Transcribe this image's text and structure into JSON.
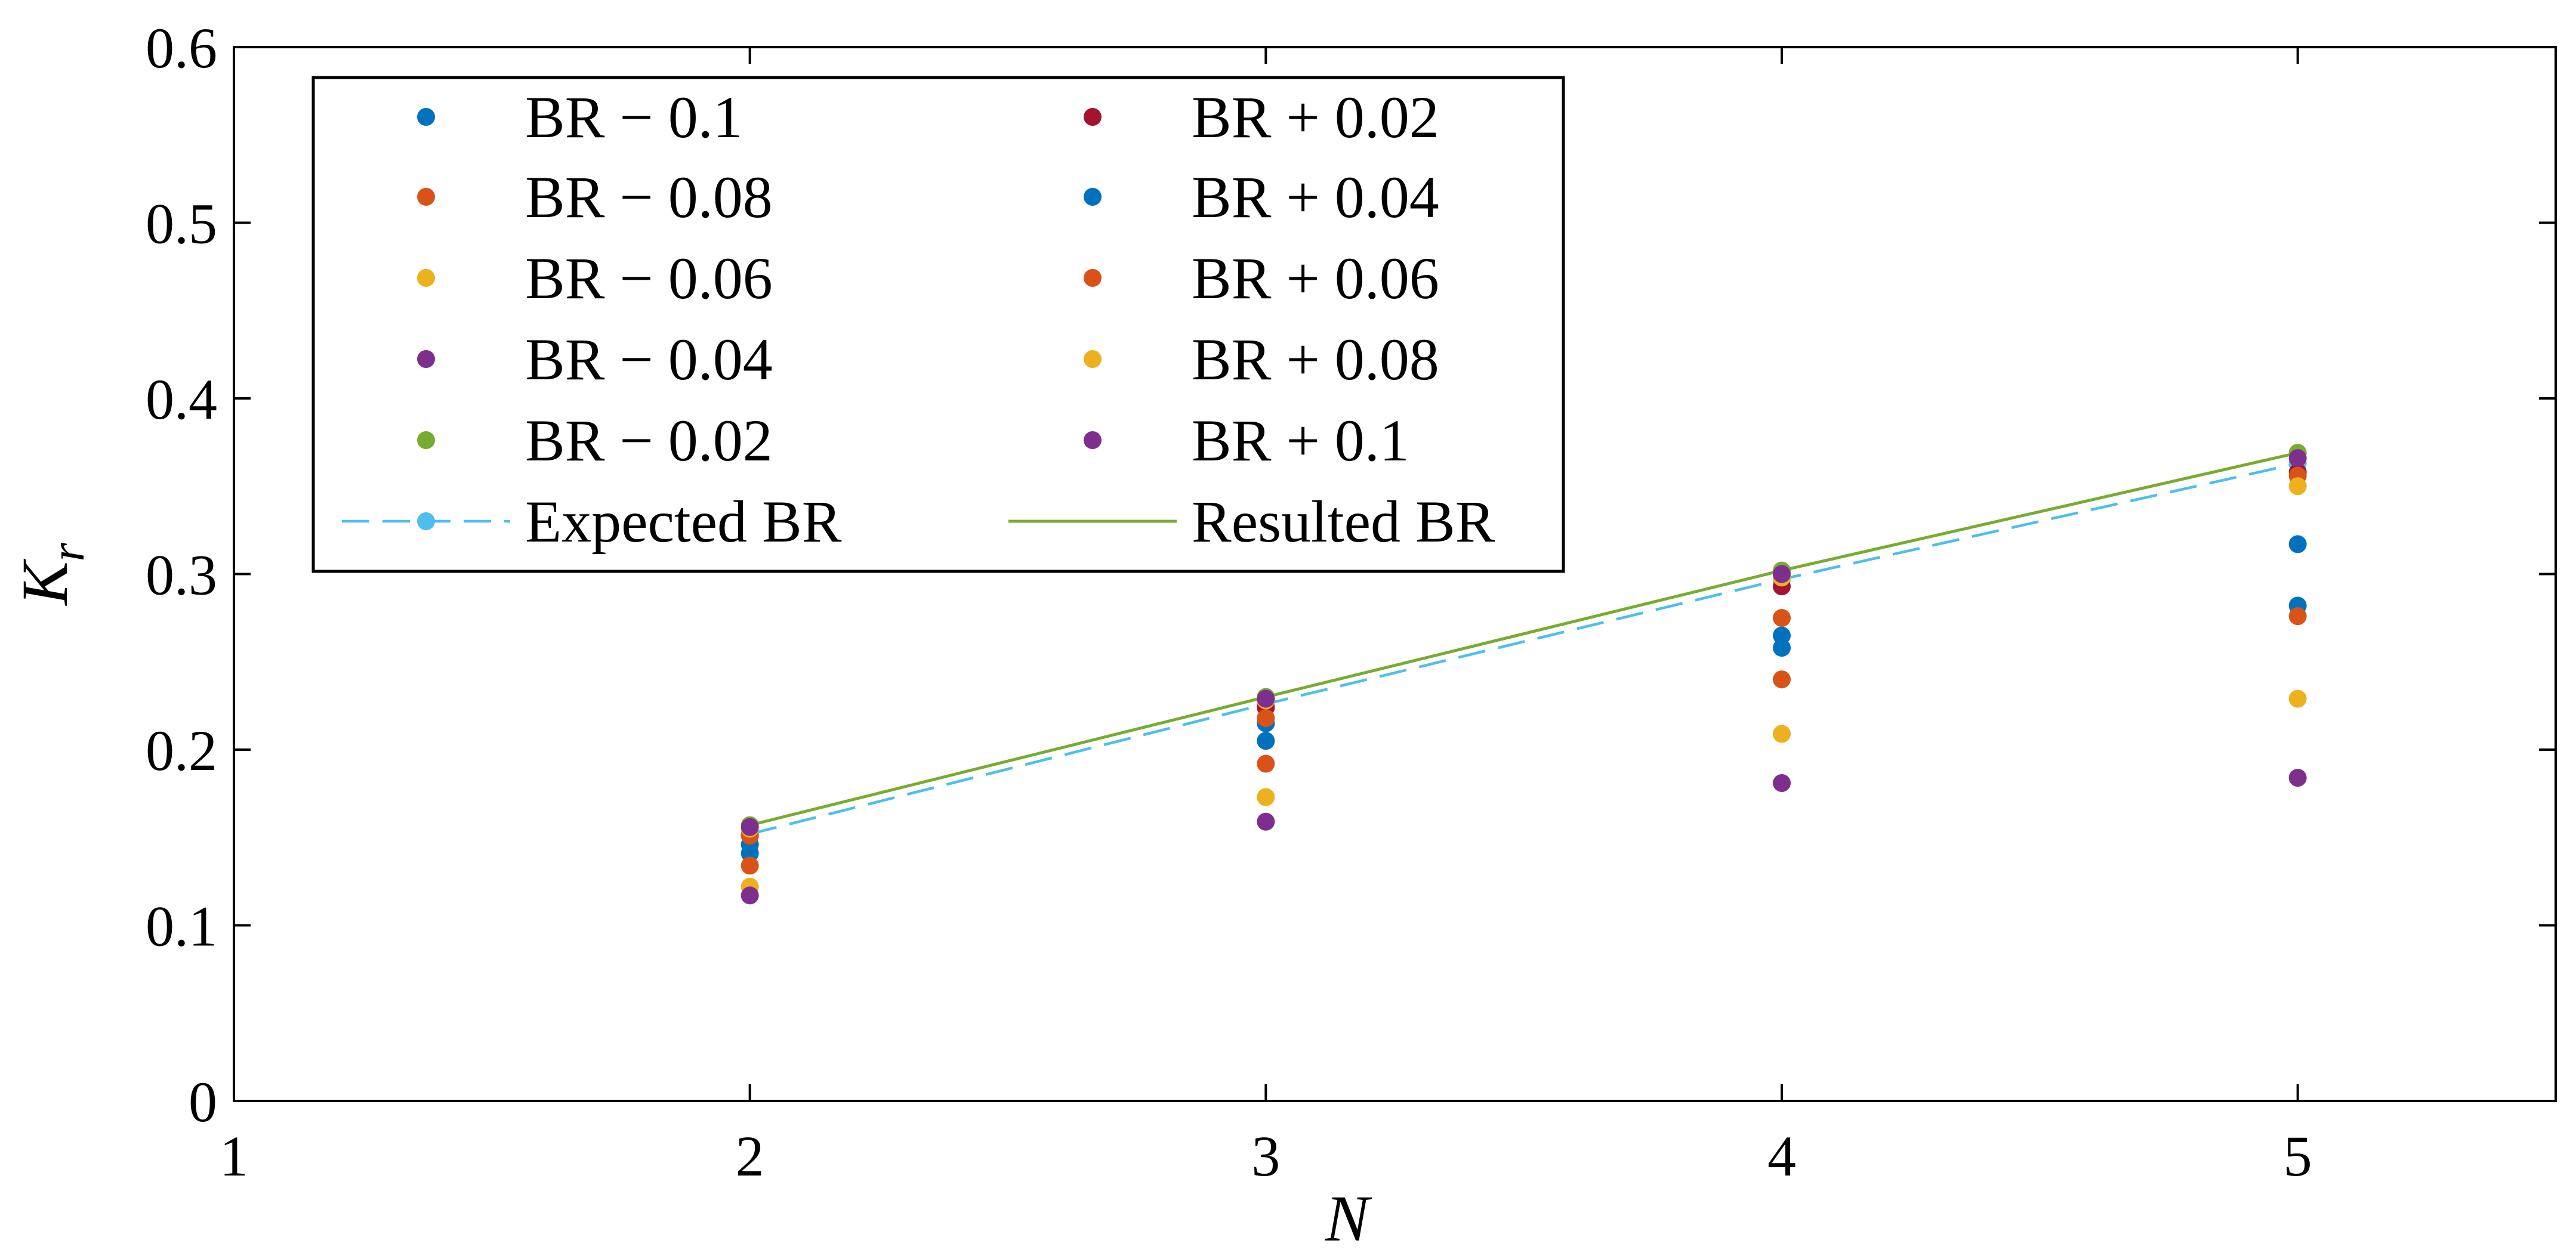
{
  "chart_data": {
    "type": "scatter",
    "title": "",
    "xlabel": "N",
    "ylabel": {
      "main": "K",
      "subscript": "r"
    },
    "xlim": [
      1,
      5.5
    ],
    "ylim": [
      0,
      0.6
    ],
    "xticks": [
      "1",
      "2",
      "3",
      "4",
      "5"
    ],
    "yticks": [
      "0",
      "0.1",
      "0.2",
      "0.3",
      "0.4",
      "0.5",
      "0.6"
    ],
    "grid": false,
    "legend_location": "top-left",
    "x": [
      2,
      3,
      4,
      5
    ],
    "series": [
      {
        "name": "BR − 0.1",
        "kind": "scatter",
        "color": "#0072BD",
        "values": [
          0.141,
          0.205,
          0.258,
          0.282
        ]
      },
      {
        "name": "BR − 0.08",
        "kind": "scatter",
        "color": "#D95319",
        "values": [
          0.134,
          0.192,
          0.24,
          0.276
        ]
      },
      {
        "name": "BR − 0.06",
        "kind": "scatter",
        "color": "#EDB120",
        "values": [
          0.122,
          0.173,
          0.209,
          0.229
        ]
      },
      {
        "name": "BR − 0.04",
        "kind": "scatter",
        "color": "#7E2F8E",
        "values": [
          0.117,
          0.159,
          0.181,
          0.184
        ]
      },
      {
        "name": "BR − 0.02",
        "kind": "scatter",
        "color": "#77AC30",
        "values": [
          0.157,
          0.23,
          0.302,
          0.369
        ]
      },
      {
        "name": "Expected BR",
        "kind": "dashed-line-marker",
        "color": "#4DBEEE",
        "values": [
          0.152,
          0.226,
          0.297,
          0.363
        ]
      },
      {
        "name": "BR + 0.02",
        "kind": "scatter",
        "color": "#A2142F",
        "values": [
          0.151,
          0.224,
          0.293,
          0.358
        ]
      },
      {
        "name": "BR + 0.04",
        "kind": "scatter",
        "color": "#0072BD",
        "values": [
          0.146,
          0.215,
          0.265,
          0.317
        ]
      },
      {
        "name": "BR + 0.06",
        "kind": "scatter",
        "color": "#D95319",
        "values": [
          0.151,
          0.218,
          0.275,
          0.356
        ]
      },
      {
        "name": "BR + 0.08",
        "kind": "scatter",
        "color": "#EDB120",
        "values": [
          0.155,
          0.228,
          0.298,
          0.35
        ]
      },
      {
        "name": "BR + 0.1",
        "kind": "scatter",
        "color": "#7E2F8E",
        "values": [
          0.156,
          0.229,
          0.3,
          0.366
        ]
      },
      {
        "name": "Resulted BR",
        "kind": "solid-line",
        "color": "#77AC30",
        "values": [
          0.157,
          0.23,
          0.302,
          0.369
        ]
      }
    ]
  }
}
